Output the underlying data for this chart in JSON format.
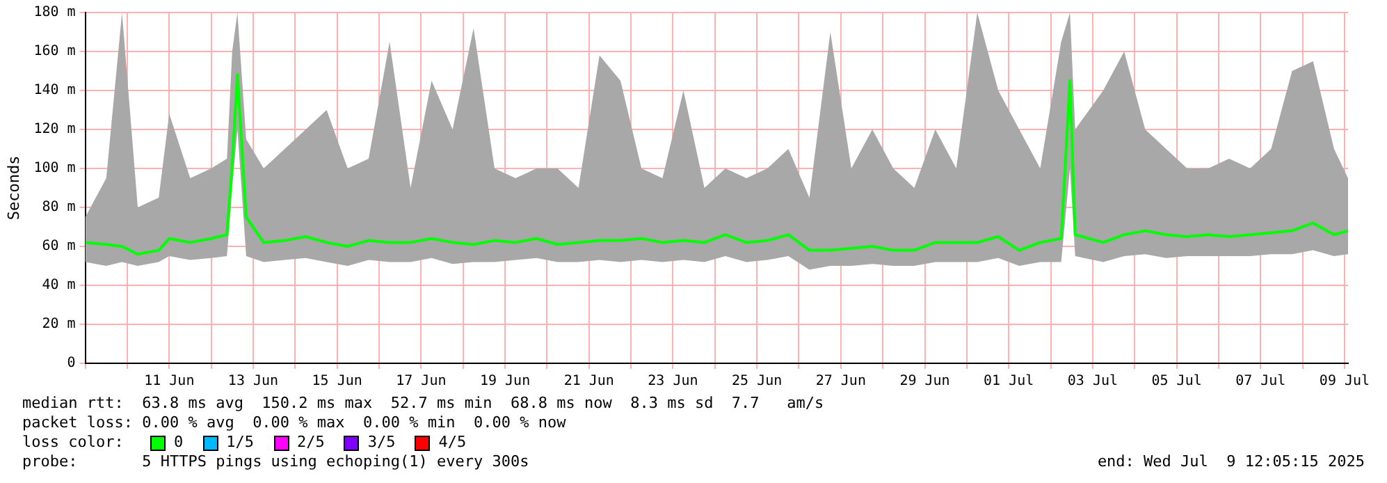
{
  "chart_data": {
    "type": "line",
    "ylabel": "Seconds",
    "xlim": [
      "2025-06-09T00:00",
      "2025-07-09T02:00"
    ],
    "xticks": [
      {
        "value": "2025-06-09",
        "label": null
      },
      {
        "value": "2025-06-10",
        "label": null
      },
      {
        "value": "2025-06-11",
        "label": "11 Jun"
      },
      {
        "value": "2025-06-12",
        "label": null
      },
      {
        "value": "2025-06-13",
        "label": "13 Jun"
      },
      {
        "value": "2025-06-14",
        "label": null
      },
      {
        "value": "2025-06-15",
        "label": "15 Jun"
      },
      {
        "value": "2025-06-16",
        "label": null
      },
      {
        "value": "2025-06-17",
        "label": "17 Jun"
      },
      {
        "value": "2025-06-18",
        "label": null
      },
      {
        "value": "2025-06-19",
        "label": "19 Jun"
      },
      {
        "value": "2025-06-20",
        "label": null
      },
      {
        "value": "2025-06-21",
        "label": "21 Jun"
      },
      {
        "value": "2025-06-22",
        "label": null
      },
      {
        "value": "2025-06-23",
        "label": "23 Jun"
      },
      {
        "value": "2025-06-24",
        "label": null
      },
      {
        "value": "2025-06-25",
        "label": "25 Jun"
      },
      {
        "value": "2025-06-26",
        "label": null
      },
      {
        "value": "2025-06-27",
        "label": "27 Jun"
      },
      {
        "value": "2025-06-28",
        "label": null
      },
      {
        "value": "2025-06-29",
        "label": "29 Jun"
      },
      {
        "value": "2025-06-30",
        "label": null
      },
      {
        "value": "2025-07-01",
        "label": "01 Jul"
      },
      {
        "value": "2025-07-02",
        "label": null
      },
      {
        "value": "2025-07-03",
        "label": "03 Jul"
      },
      {
        "value": "2025-07-04",
        "label": null
      },
      {
        "value": "2025-07-05",
        "label": "05 Jul"
      },
      {
        "value": "2025-07-06",
        "label": null
      },
      {
        "value": "2025-07-07",
        "label": "07 Jul"
      },
      {
        "value": "2025-07-08",
        "label": null
      },
      {
        "value": "2025-07-09",
        "label": "09 Jul"
      }
    ],
    "ylim": [
      0,
      180
    ],
    "yticks": [
      0,
      {
        "value": 20,
        "label": "20 m"
      },
      {
        "value": 40,
        "label": "40 m"
      },
      {
        "value": 60,
        "label": "60 m"
      },
      {
        "value": 80,
        "label": "80 m"
      },
      {
        "value": 100,
        "label": "100 m"
      },
      {
        "value": 120,
        "label": "120 m"
      },
      {
        "value": 140,
        "label": "140 m"
      },
      {
        "value": 160,
        "label": "160 m"
      },
      {
        "value": 180,
        "label": "180 m"
      }
    ],
    "grid": true,
    "legend": false,
    "marker": "none",
    "line_style": "solid",
    "x": [
      "2025-06-09T00:00",
      "2025-06-09T12:00",
      "2025-06-09T21:00",
      "2025-06-10T06:00",
      "2025-06-10T18:00",
      "2025-06-11T00:00",
      "2025-06-11T12:00",
      "2025-06-12T00:00",
      "2025-06-12T09:00",
      "2025-06-12T12:00",
      "2025-06-12T15:00",
      "2025-06-12T20:00",
      "2025-06-13T06:00",
      "2025-06-13T18:00",
      "2025-06-14T06:00",
      "2025-06-14T18:00",
      "2025-06-15T06:00",
      "2025-06-15T18:00",
      "2025-06-16T06:00",
      "2025-06-16T18:00",
      "2025-06-17T06:00",
      "2025-06-17T18:00",
      "2025-06-18T06:00",
      "2025-06-18T18:00",
      "2025-06-19T06:00",
      "2025-06-19T18:00",
      "2025-06-20T06:00",
      "2025-06-20T18:00",
      "2025-06-21T06:00",
      "2025-06-21T18:00",
      "2025-06-22T06:00",
      "2025-06-22T18:00",
      "2025-06-23T06:00",
      "2025-06-23T18:00",
      "2025-06-24T06:00",
      "2025-06-24T18:00",
      "2025-06-25T06:00",
      "2025-06-25T18:00",
      "2025-06-26T06:00",
      "2025-06-26T18:00",
      "2025-06-27T06:00",
      "2025-06-27T18:00",
      "2025-06-28T06:00",
      "2025-06-28T18:00",
      "2025-06-29T06:00",
      "2025-06-29T18:00",
      "2025-06-30T06:00",
      "2025-06-30T18:00",
      "2025-07-01T06:00",
      "2025-07-01T18:00",
      "2025-07-02T06:00",
      "2025-07-02T11:00",
      "2025-07-02T14:00",
      "2025-07-03T06:00",
      "2025-07-03T18:00",
      "2025-07-04T06:00",
      "2025-07-04T18:00",
      "2025-07-05T06:00",
      "2025-07-05T18:00",
      "2025-07-06T06:00",
      "2025-07-06T18:00",
      "2025-07-07T06:00",
      "2025-07-07T18:00",
      "2025-07-08T06:00",
      "2025-07-08T18:00",
      "2025-07-09T02:00"
    ],
    "series": [
      {
        "color": "#00ff00",
        "values": [
          62,
          61,
          60,
          56,
          58,
          64,
          62,
          64,
          66,
          102,
          148,
          75,
          62,
          63,
          65,
          62,
          60,
          63,
          62,
          62,
          64,
          62,
          61,
          63,
          62,
          64,
          61,
          62,
          63,
          63,
          64,
          62,
          63,
          62,
          66,
          62,
          63,
          66,
          58,
          58,
          59,
          60,
          58,
          58,
          62,
          62,
          62,
          65,
          58,
          62,
          64,
          145,
          66,
          62,
          66,
          68,
          66,
          65,
          66,
          65,
          66,
          67,
          68,
          72,
          66,
          68
        ],
        "lower": [
          52,
          50,
          52,
          50,
          52,
          55,
          53,
          54,
          55,
          90,
          120,
          55,
          52,
          53,
          54,
          52,
          50,
          53,
          52,
          52,
          54,
          51,
          52,
          52,
          53,
          54,
          52,
          52,
          53,
          52,
          53,
          52,
          53,
          52,
          55,
          52,
          53,
          55,
          48,
          50,
          50,
          51,
          50,
          50,
          52,
          52,
          52,
          54,
          50,
          52,
          52,
          100,
          55,
          52,
          55,
          56,
          54,
          55,
          55,
          55,
          55,
          56,
          56,
          58,
          55,
          56
        ],
        "upper": [
          75,
          95,
          180,
          80,
          85,
          128,
          95,
          100,
          105,
          160,
          180,
          115,
          100,
          110,
          120,
          130,
          100,
          105,
          165,
          90,
          145,
          120,
          172,
          100,
          95,
          100,
          100,
          90,
          158,
          145,
          100,
          95,
          140,
          90,
          100,
          95,
          100,
          110,
          85,
          170,
          100,
          120,
          100,
          90,
          120,
          100,
          180,
          140,
          120,
          100,
          165,
          180,
          120,
          140,
          160,
          120,
          110,
          100,
          100,
          105,
          100,
          110,
          150,
          155,
          110,
          95
        ]
      }
    ],
    "annotations": [
      "median rtt:  63.8 ms avg  150.2 ms max  52.7 ms min  68.8 ms now  8.3 ms sd  7.7   am/s",
      "packet loss: 0.00 % avg  0.00 % max  0.00 % min  0.00 % now",
      "loss color:",
      "0",
      "1/5",
      "2/5",
      "3/5",
      "4/5",
      "probe:       5 HTTPS pings using echoping(1) every 300s",
      "end: Wed Jul  9 12:05:15 2025"
    ]
  }
}
